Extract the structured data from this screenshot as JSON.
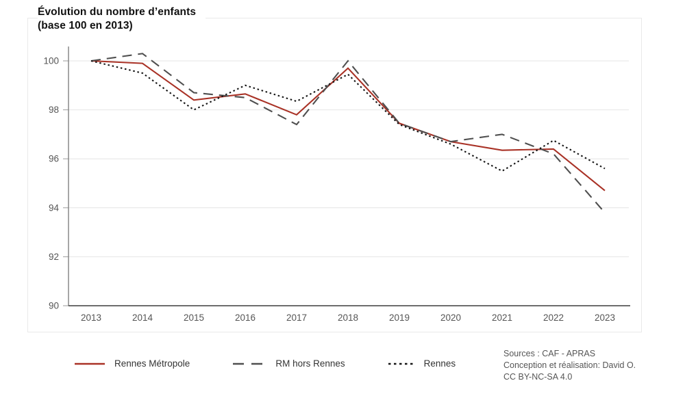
{
  "title": {
    "line1": "Évolution du nombre d’enfants",
    "line2": "(base 100 en 2013)"
  },
  "footer": {
    "lines": [
      "Sources : CAF - APRAS",
      "Conception et réalisation: David O.",
      "CC BY-NC-SA 4.0"
    ]
  },
  "colors": {
    "rennes_metropole": "#a93226",
    "rm_hors_rennes": "#4f4f4f",
    "rennes": "#141414",
    "gridline": "#e4e4e4",
    "axis": "#3c3c3c",
    "y_axis_line": "#808080",
    "tick_text": "#555555",
    "card_border": "#e9e9e9"
  },
  "chart_data": {
    "type": "line",
    "title": "Évolution du nombre d’enfants (base 100 en 2013)",
    "xlabel": "",
    "ylabel": "",
    "x": [
      2013,
      2014,
      2015,
      2016,
      2017,
      2018,
      2019,
      2020,
      2021,
      2022,
      2023
    ],
    "series": [
      {
        "name": "Rennes Métropole",
        "style": "solid",
        "color": "#a93226",
        "values": [
          100,
          99.9,
          98.4,
          98.65,
          97.8,
          99.7,
          97.45,
          96.7,
          96.35,
          96.4,
          94.7
        ]
      },
      {
        "name": "RM hors Rennes",
        "style": "dashed",
        "color": "#4f4f4f",
        "values": [
          100,
          100.3,
          98.7,
          98.5,
          97.4,
          100.0,
          97.45,
          96.7,
          97.0,
          96.2,
          93.8
        ]
      },
      {
        "name": "Rennes",
        "style": "dotted",
        "color": "#141414",
        "values": [
          100,
          99.5,
          98.0,
          99.0,
          98.35,
          99.45,
          97.4,
          96.6,
          95.5,
          96.75,
          95.6
        ]
      }
    ],
    "ylim": [
      90,
      101
    ],
    "yticks": [
      90,
      92,
      94,
      96,
      98,
      100
    ],
    "grid": true,
    "legend_position": "bottom"
  }
}
